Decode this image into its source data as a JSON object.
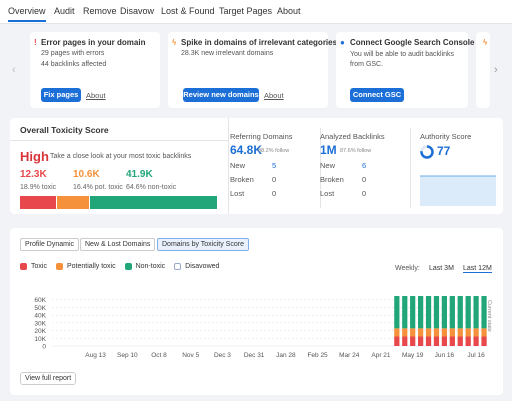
{
  "tabs": [
    "Overview",
    "Audit",
    "Remove",
    "Disavow",
    "Lost & Found",
    "Target Pages",
    "About"
  ],
  "cards": [
    {
      "title": "Error pages in your domain",
      "lines": [
        "29 pages with errors",
        "44 backlinks affected"
      ],
      "button": "Fix pages",
      "link": "About"
    },
    {
      "title": "Spike in domains of irrelevant categories",
      "lines": [
        "28.3K new irrelevant domains"
      ],
      "button": "Review new domains",
      "link": "About"
    },
    {
      "title": "Connect Google Search Console",
      "lines": [
        "You will be able to audit backlinks from GSC."
      ],
      "button": "Connect GSC"
    }
  ],
  "toxicity": {
    "title": "Overall Toxicity Score",
    "level": "High",
    "hint": "Take a close look at your most toxic backlinks",
    "segments": [
      {
        "count": "12.3K",
        "share": 18.9,
        "share_label": "18.9% toxic",
        "color": "#e8474c"
      },
      {
        "count": "10.6K",
        "share": 16.4,
        "share_label": "16.4% pot. toxic",
        "color": "#f5913a"
      },
      {
        "count": "41.9K",
        "share": 64.6,
        "share_label": "64.6% non-toxic",
        "color": "#21a67a"
      }
    ]
  },
  "metrics": [
    {
      "title": "Referring Domains",
      "value": "64.8K",
      "note": "88.2% follow",
      "rows": [
        {
          "label": "New",
          "value": 5
        },
        {
          "label": "Broken",
          "value": 0
        },
        {
          "label": "Lost",
          "value": 0
        }
      ]
    },
    {
      "title": "Analyzed Backlinks",
      "value": "1M",
      "note": "87.6% follow",
      "rows": [
        {
          "label": "New",
          "value": 6
        },
        {
          "label": "Broken",
          "value": 0
        },
        {
          "label": "Lost",
          "value": 0
        }
      ]
    }
  ],
  "authority": {
    "title": "Authority Score",
    "value": 77
  },
  "report": {
    "tabs": [
      "Profile Dynamic",
      "New & Lost Domains",
      "Domains by Toxicity Score"
    ],
    "period_label": "Weekly:",
    "periods": [
      "Last 3M",
      "Last 12M"
    ],
    "button": "View full report"
  },
  "chart_data": {
    "type": "bar",
    "stacked": true,
    "annotation": "Current state",
    "categories": [
      null,
      null,
      null,
      null,
      null,
      "Aug 13",
      null,
      null,
      null,
      "Sep 10",
      null,
      null,
      null,
      "Oct 8",
      null,
      null,
      null,
      "Nov 5",
      null,
      null,
      null,
      "Dec 3",
      null,
      null,
      null,
      "Dec 31",
      null,
      null,
      null,
      "Jan 28",
      null,
      null,
      null,
      "Feb 25",
      null,
      null,
      null,
      "Mar 24",
      null,
      null,
      null,
      "Apr 21",
      null,
      null,
      null,
      "May 19",
      null,
      null,
      null,
      "Jun 16",
      null,
      null,
      null,
      "Jul 16",
      null
    ],
    "series": [
      {
        "name": "Toxic",
        "color": "#e8474c",
        "values": [
          null,
          null,
          null,
          null,
          null,
          null,
          null,
          null,
          null,
          null,
          null,
          null,
          null,
          null,
          null,
          null,
          null,
          null,
          null,
          null,
          null,
          null,
          null,
          null,
          null,
          null,
          null,
          null,
          null,
          null,
          null,
          null,
          null,
          null,
          null,
          null,
          null,
          null,
          null,
          null,
          null,
          null,
          null,
          12300,
          12300,
          12300,
          12300,
          12300,
          12300,
          12300,
          12300,
          12300,
          12300,
          12300,
          12300
        ]
      },
      {
        "name": "Potentially toxic",
        "color": "#f5913a",
        "values": [
          null,
          null,
          null,
          null,
          null,
          null,
          null,
          null,
          null,
          null,
          null,
          null,
          null,
          null,
          null,
          null,
          null,
          null,
          null,
          null,
          null,
          null,
          null,
          null,
          null,
          null,
          null,
          null,
          null,
          null,
          null,
          null,
          null,
          null,
          null,
          null,
          null,
          null,
          null,
          null,
          null,
          null,
          null,
          10600,
          10600,
          10600,
          10600,
          10600,
          10600,
          10600,
          10600,
          10600,
          10600,
          10600,
          10600
        ]
      },
      {
        "name": "Non-toxic",
        "color": "#21a67a",
        "values": [
          null,
          null,
          null,
          null,
          null,
          null,
          null,
          null,
          null,
          null,
          null,
          null,
          null,
          null,
          null,
          null,
          null,
          null,
          null,
          null,
          null,
          null,
          null,
          null,
          null,
          null,
          null,
          null,
          null,
          null,
          null,
          null,
          null,
          null,
          null,
          null,
          null,
          null,
          null,
          null,
          null,
          null,
          null,
          41900,
          41900,
          41900,
          41900,
          41900,
          41900,
          41900,
          41900,
          41900,
          41900,
          41900,
          41900
        ]
      },
      {
        "name": "Disavowed",
        "color": "#ffffff",
        "values": [
          null,
          null,
          null,
          null,
          null,
          null,
          null,
          null,
          null,
          null,
          null,
          null,
          null,
          null,
          null,
          null,
          null,
          null,
          null,
          null,
          null,
          null,
          null,
          null,
          null,
          null,
          null,
          null,
          null,
          null,
          null,
          null,
          null,
          null,
          null,
          null,
          null,
          null,
          null,
          null,
          null,
          null,
          null,
          null,
          null,
          null,
          null,
          null,
          null,
          null,
          null,
          null,
          null,
          null,
          null
        ]
      }
    ],
    "ylim": [
      0,
      70000
    ],
    "yticks": [
      0,
      {
        "value": 10000,
        "label": "10K"
      },
      {
        "value": 20000,
        "label": "20K"
      },
      {
        "value": 30000,
        "label": "30K"
      },
      {
        "value": 40000,
        "label": "40K"
      },
      {
        "value": 50000,
        "label": "50K"
      },
      {
        "value": 60000,
        "label": "60K"
      }
    ],
    "grid": true
  }
}
